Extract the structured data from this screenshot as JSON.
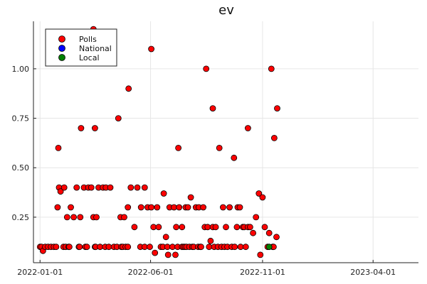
{
  "chart_data": {
    "type": "scatter",
    "title": "ev",
    "xlabel": "",
    "ylabel": "",
    "x_axis_type": "date",
    "xlim": [
      "2021-12-23",
      "2023-06-02"
    ],
    "ylim": [
      0.02,
      1.24
    ],
    "x_ticks": [
      "2022-01-01",
      "2022-06-01",
      "2022-11-01",
      "2023-04-01"
    ],
    "y_ticks": [
      0.25,
      0.5,
      0.75,
      1.0
    ],
    "y_tick_labels": [
      "0.25",
      "0.50",
      "0.75",
      "1.00"
    ],
    "grid": true,
    "legend_position": "top-left",
    "series": [
      {
        "name": "Polls",
        "color": "#ff0000",
        "points": [
          [
            "2022-01-01",
            0.1
          ],
          [
            "2022-01-03",
            0.1
          ],
          [
            "2022-01-05",
            0.08
          ],
          [
            "2022-01-08",
            0.1
          ],
          [
            "2022-01-12",
            0.1
          ],
          [
            "2022-01-16",
            0.1
          ],
          [
            "2022-01-20",
            0.1
          ],
          [
            "2022-01-23",
            0.1
          ],
          [
            "2022-01-25",
            0.3
          ],
          [
            "2022-01-26",
            0.6
          ],
          [
            "2022-01-27",
            0.4
          ],
          [
            "2022-01-29",
            0.38
          ],
          [
            "2022-02-02",
            0.1
          ],
          [
            "2022-02-03",
            0.4
          ],
          [
            "2022-02-05",
            0.1
          ],
          [
            "2022-02-07",
            0.25
          ],
          [
            "2022-02-09",
            0.1
          ],
          [
            "2022-02-10",
            0.1
          ],
          [
            "2022-02-12",
            0.3
          ],
          [
            "2022-02-16",
            0.25
          ],
          [
            "2022-02-20",
            0.4
          ],
          [
            "2022-02-23",
            0.1
          ],
          [
            "2022-02-24",
            0.1
          ],
          [
            "2022-02-25",
            0.25
          ],
          [
            "2022-02-26",
            0.7
          ],
          [
            "2022-03-02",
            0.4
          ],
          [
            "2022-03-04",
            0.1
          ],
          [
            "2022-03-06",
            0.1
          ],
          [
            "2022-03-08",
            0.4
          ],
          [
            "2022-03-12",
            0.4
          ],
          [
            "2022-03-15",
            1.2
          ],
          [
            "2022-03-15",
            0.25
          ],
          [
            "2022-03-17",
            0.7
          ],
          [
            "2022-03-17",
            0.1
          ],
          [
            "2022-03-18",
            0.1
          ],
          [
            "2022-03-19",
            0.25
          ],
          [
            "2022-03-22",
            0.4
          ],
          [
            "2022-03-24",
            0.1
          ],
          [
            "2022-03-28",
            0.4
          ],
          [
            "2022-03-31",
            0.1
          ],
          [
            "2022-04-01",
            0.4
          ],
          [
            "2022-04-05",
            0.1
          ],
          [
            "2022-04-07",
            0.4
          ],
          [
            "2022-04-12",
            0.1
          ],
          [
            "2022-04-16",
            0.1
          ],
          [
            "2022-04-18",
            0.75
          ],
          [
            "2022-04-21",
            0.25
          ],
          [
            "2022-04-22",
            0.1
          ],
          [
            "2022-04-24",
            0.1
          ],
          [
            "2022-04-26",
            0.25
          ],
          [
            "2022-04-28",
            0.1
          ],
          [
            "2022-05-01",
            0.1
          ],
          [
            "2022-05-01",
            0.3
          ],
          [
            "2022-05-02",
            0.9
          ],
          [
            "2022-05-05",
            0.4
          ],
          [
            "2022-05-10",
            0.2
          ],
          [
            "2022-05-14",
            0.4
          ],
          [
            "2022-05-18",
            0.1
          ],
          [
            "2022-05-19",
            0.3
          ],
          [
            "2022-05-24",
            0.4
          ],
          [
            "2022-05-24",
            0.1
          ],
          [
            "2022-05-28",
            0.3
          ],
          [
            "2022-05-31",
            0.1
          ],
          [
            "2022-06-02",
            1.1
          ],
          [
            "2022-06-02",
            0.3
          ],
          [
            "2022-06-05",
            0.2
          ],
          [
            "2022-06-07",
            0.07
          ],
          [
            "2022-06-10",
            0.3
          ],
          [
            "2022-06-12",
            0.2
          ],
          [
            "2022-06-15",
            0.1
          ],
          [
            "2022-06-18",
            0.1
          ],
          [
            "2022-06-19",
            0.37
          ],
          [
            "2022-06-22",
            0.15
          ],
          [
            "2022-06-24",
            0.1
          ],
          [
            "2022-06-25",
            0.06
          ],
          [
            "2022-06-27",
            0.3
          ],
          [
            "2022-07-01",
            0.1
          ],
          [
            "2022-07-03",
            0.3
          ],
          [
            "2022-07-05",
            0.06
          ],
          [
            "2022-07-06",
            0.2
          ],
          [
            "2022-07-08",
            0.1
          ],
          [
            "2022-07-09",
            0.6
          ],
          [
            "2022-07-10",
            0.3
          ],
          [
            "2022-07-14",
            0.2
          ],
          [
            "2022-07-14",
            0.1
          ],
          [
            "2022-07-16",
            0.1
          ],
          [
            "2022-07-18",
            0.1
          ],
          [
            "2022-07-19",
            0.3
          ],
          [
            "2022-07-20",
            0.1
          ],
          [
            "2022-07-22",
            0.3
          ],
          [
            "2022-07-24",
            0.1
          ],
          [
            "2022-07-26",
            0.35
          ],
          [
            "2022-07-28",
            0.1
          ],
          [
            "2022-07-30",
            0.1
          ],
          [
            "2022-08-02",
            0.3
          ],
          [
            "2022-08-05",
            0.1
          ],
          [
            "2022-08-06",
            0.3
          ],
          [
            "2022-08-08",
            0.1
          ],
          [
            "2022-08-09",
            0.1
          ],
          [
            "2022-08-12",
            0.3
          ],
          [
            "2022-08-14",
            0.2
          ],
          [
            "2022-08-16",
            1.0
          ],
          [
            "2022-08-18",
            0.2
          ],
          [
            "2022-08-20",
            0.1
          ],
          [
            "2022-08-22",
            0.13
          ],
          [
            "2022-08-25",
            0.8
          ],
          [
            "2022-08-25",
            0.2
          ],
          [
            "2022-08-27",
            0.1
          ],
          [
            "2022-08-29",
            0.2
          ],
          [
            "2022-09-01",
            0.1
          ],
          [
            "2022-09-03",
            0.6
          ],
          [
            "2022-09-06",
            0.1
          ],
          [
            "2022-09-08",
            0.3
          ],
          [
            "2022-09-10",
            0.1
          ],
          [
            "2022-09-12",
            0.2
          ],
          [
            "2022-09-14",
            0.1
          ],
          [
            "2022-09-17",
            0.3
          ],
          [
            "2022-09-20",
            0.1
          ],
          [
            "2022-09-23",
            0.55
          ],
          [
            "2022-09-24",
            0.1
          ],
          [
            "2022-09-27",
            0.2
          ],
          [
            "2022-09-28",
            0.3
          ],
          [
            "2022-10-01",
            0.3
          ],
          [
            "2022-10-02",
            0.1
          ],
          [
            "2022-10-05",
            0.2
          ],
          [
            "2022-10-07",
            0.2
          ],
          [
            "2022-10-09",
            0.1
          ],
          [
            "2022-10-12",
            0.7
          ],
          [
            "2022-10-12",
            0.2
          ],
          [
            "2022-10-15",
            0.2
          ],
          [
            "2022-10-19",
            0.17
          ],
          [
            "2022-10-23",
            0.25
          ],
          [
            "2022-10-27",
            0.37
          ],
          [
            "2022-10-29",
            0.06
          ],
          [
            "2022-11-01",
            0.35
          ],
          [
            "2022-11-04",
            0.2
          ],
          [
            "2022-11-08",
            0.1
          ],
          [
            "2022-11-10",
            0.17
          ],
          [
            "2022-11-13",
            1.0
          ],
          [
            "2022-11-15",
            0.1
          ],
          [
            "2022-11-16",
            0.1
          ],
          [
            "2022-11-17",
            0.65
          ],
          [
            "2022-11-20",
            0.15
          ],
          [
            "2022-11-21",
            0.8
          ]
        ]
      },
      {
        "name": "National",
        "color": "#0000ff",
        "points": []
      },
      {
        "name": "Local",
        "color": "#008000",
        "points": [
          [
            "2022-11-10",
            0.1
          ]
        ]
      }
    ]
  }
}
